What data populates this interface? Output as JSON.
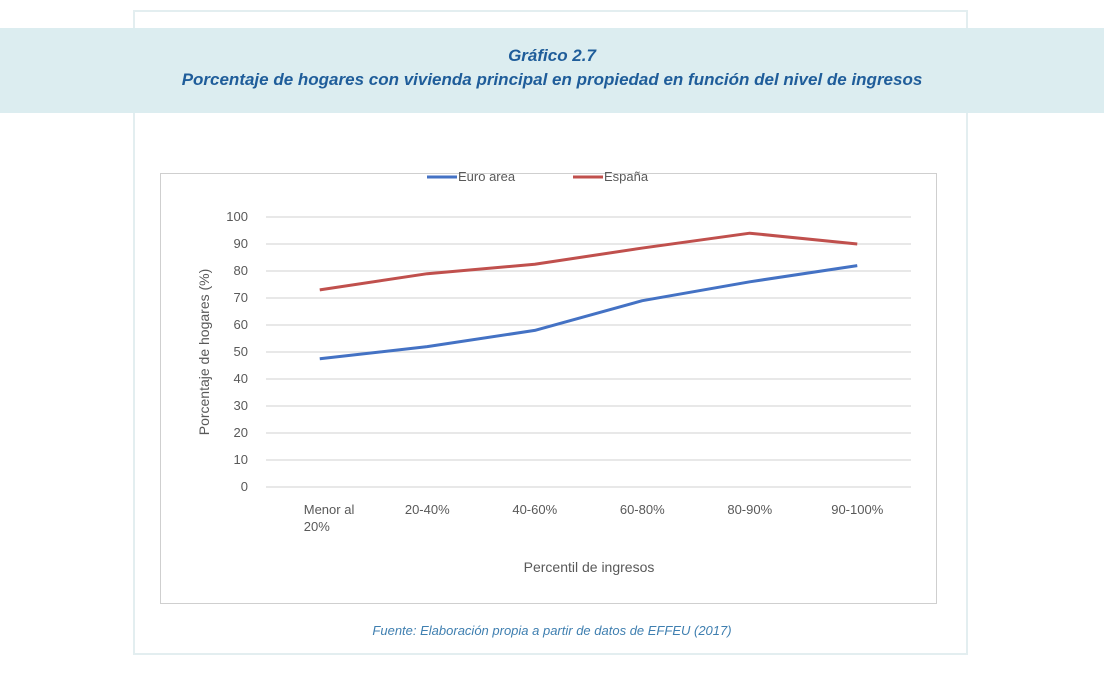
{
  "header": {
    "figure_number": "Gráfico 2.7",
    "title": "Porcentaje de hogares con vivienda principal en propiedad en función del nivel de ingresos"
  },
  "source": "Fuente: Elaboración propia a partir de datos de EFFEU (2017)",
  "chart_data": {
    "type": "line",
    "title": "",
    "xlabel": "Percentil de ingresos",
    "ylabel": "Porcentaje de hogares (%)",
    "categories": [
      "Menor al 20%",
      "20-40%",
      "40-60%",
      "60-80%",
      "80-90%",
      "90-100%"
    ],
    "ylim": [
      0,
      100
    ],
    "yticks": [
      0,
      10,
      20,
      30,
      40,
      50,
      60,
      70,
      80,
      90,
      100
    ],
    "grid": true,
    "legend": "top",
    "series": [
      {
        "name": "Euro area",
        "color": "#4472c4",
        "values": [
          47.5,
          52,
          58,
          69,
          76,
          82
        ]
      },
      {
        "name": "España",
        "color": "#c0504d",
        "values": [
          73,
          79,
          82.5,
          88.5,
          94,
          90
        ]
      }
    ]
  }
}
